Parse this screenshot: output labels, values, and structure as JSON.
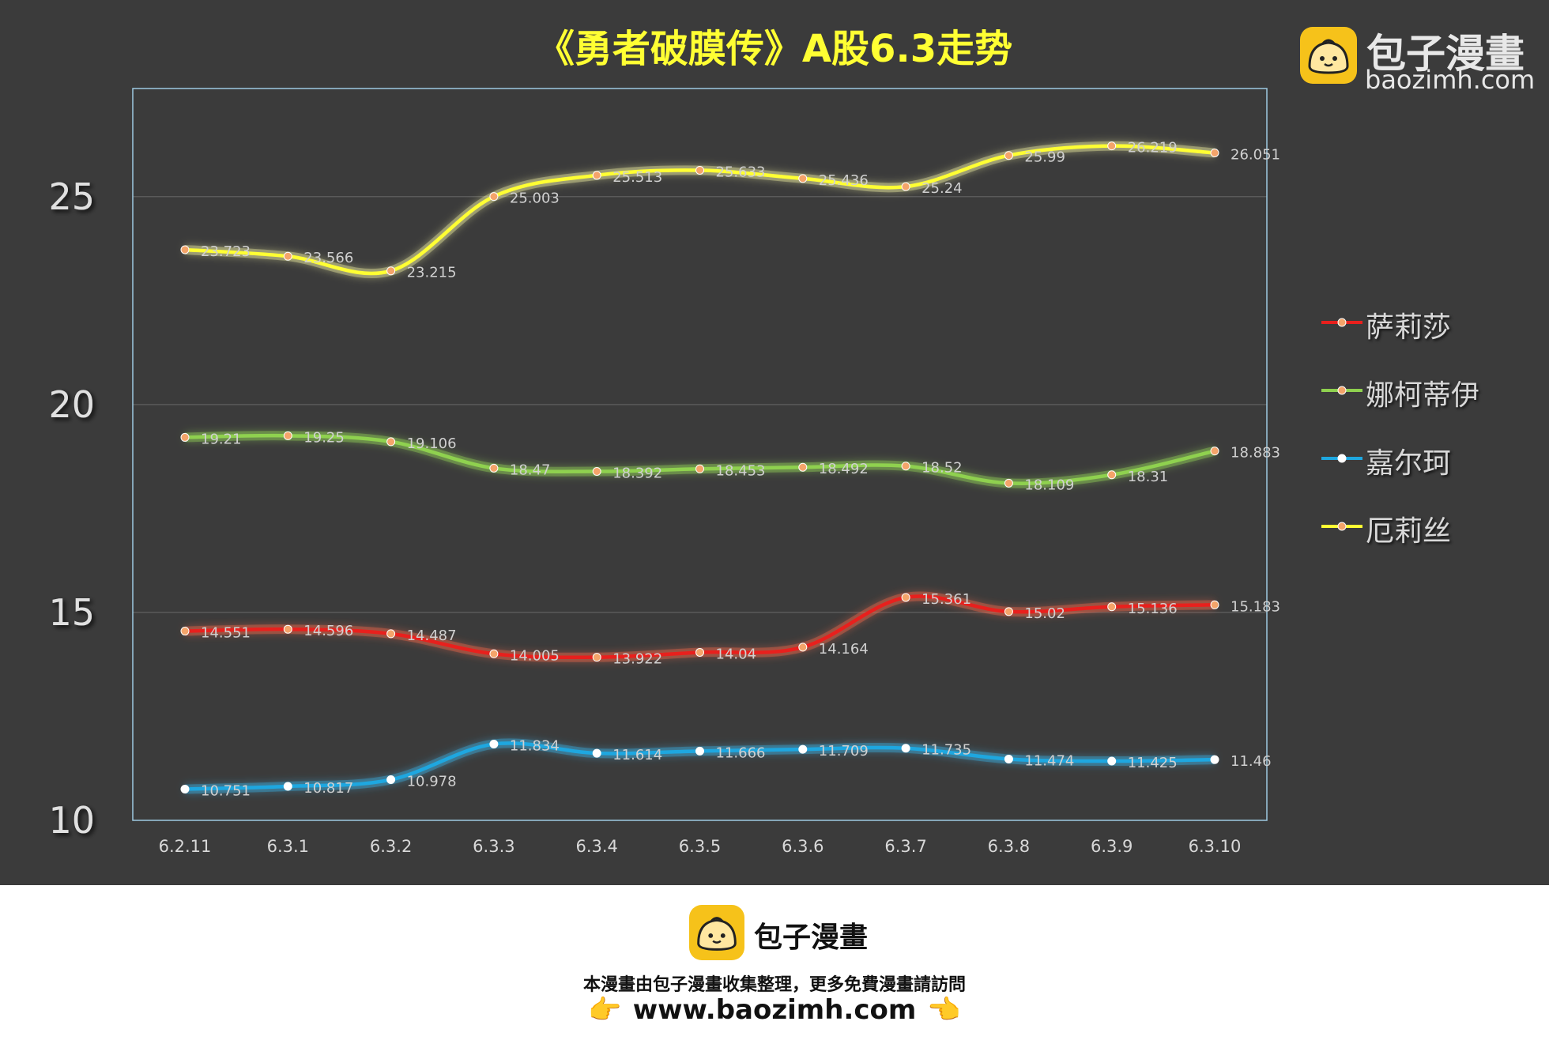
{
  "title": "《勇者破膜传》A股6.3走势",
  "watermark": {
    "brand": "包子漫畫",
    "domain": "baozimh.com"
  },
  "footer": {
    "brand": "包子漫畫",
    "note": "本漫畫由包子漫畫收集整理，更多免費漫畫請訪問",
    "url": "www.baozimh.com",
    "hand_left": "👉",
    "hand_right": "👈"
  },
  "colors": {
    "background": "#3b3b3b",
    "title": "#ffff33",
    "plot_border": "#9ecae1"
  },
  "chart_data": {
    "type": "line",
    "title": "《勇者破膜传》A股6.3走势",
    "categories": [
      "6.2.11",
      "6.3.1",
      "6.3.2",
      "6.3.3",
      "6.3.4",
      "6.3.5",
      "6.3.6",
      "6.3.7",
      "6.3.8",
      "6.3.9",
      "6.3.10"
    ],
    "ylim": [
      10,
      27.6
    ],
    "yticks": [
      10,
      15,
      20,
      25
    ],
    "grid": true,
    "legend_position": "right",
    "series": [
      {
        "name": "萨莉莎",
        "color": "#e8201d",
        "glow": "#ff6a4a",
        "marker": "#f4a46a",
        "values": [
          14.551,
          14.596,
          14.487,
          14.005,
          13.922,
          14.04,
          14.164,
          15.361,
          15.02,
          15.136,
          15.183
        ],
        "labels": [
          "14.551",
          "14.596",
          "14.487",
          "14.005",
          "13.922",
          "14.04",
          "14.164",
          "15.361",
          "15.02",
          "15.136",
          "15.183"
        ]
      },
      {
        "name": "娜柯蒂伊",
        "color": "#8fd14f",
        "glow": "#9be05a",
        "marker": "#f4a46a",
        "values": [
          19.21,
          19.25,
          19.106,
          18.47,
          18.392,
          18.453,
          18.492,
          18.52,
          18.109,
          18.31,
          18.883
        ],
        "labels": [
          "19.21",
          "19.25",
          "19.106",
          "18.47",
          "18.392",
          "18.453",
          "18.492",
          "18.52",
          "18.109",
          "18.31",
          "18.883"
        ]
      },
      {
        "name": "嘉尔珂",
        "color": "#1ea7e0",
        "glow": "#39b6ee",
        "marker": "#ffffff",
        "values": [
          10.751,
          10.817,
          10.978,
          11.834,
          11.614,
          11.666,
          11.709,
          11.735,
          11.474,
          11.425,
          11.46
        ],
        "labels": [
          "10.751",
          "10.817",
          "10.978",
          "11.834",
          "11.614",
          "11.666",
          "11.709",
          "11.735",
          "11.474",
          "11.425",
          "11.46"
        ]
      },
      {
        "name": "厄莉丝",
        "color": "#ffff33",
        "glow": "#ffffaa",
        "marker": "#f4a46a",
        "values": [
          23.723,
          23.566,
          23.215,
          25.003,
          25.513,
          25.633,
          25.436,
          25.24,
          25.99,
          26.219,
          26.051
        ],
        "labels": [
          "23.723",
          "23.566",
          "23.215",
          "25.003",
          "25.513",
          "25.633",
          "25.436",
          "25.24",
          "25.99",
          "26.219",
          "26.051"
        ]
      }
    ]
  }
}
